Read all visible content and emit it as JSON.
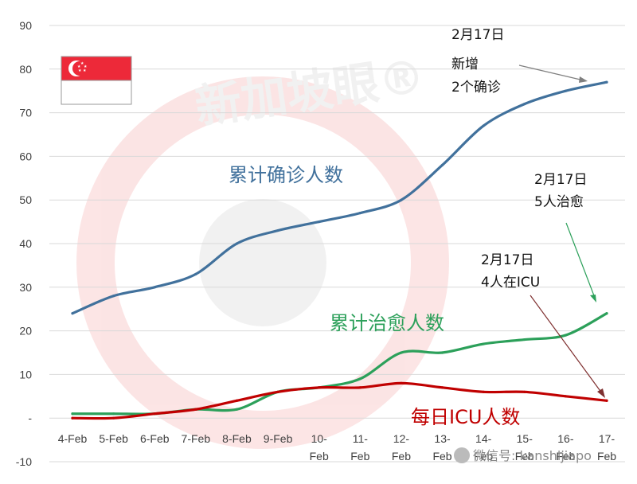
{
  "chart_data": {
    "type": "line",
    "title": "",
    "xlabel": "",
    "ylabel": "",
    "ylim": [
      -10,
      90
    ],
    "yticks": [
      -10,
      0,
      10,
      20,
      30,
      40,
      50,
      60,
      70,
      80,
      90
    ],
    "ytick_labels": [
      "-10",
      "-",
      "10",
      "20",
      "30",
      "40",
      "50",
      "60",
      "70",
      "80",
      "90"
    ],
    "grid": true,
    "categories": [
      "4-Feb",
      "5-Feb",
      "6-Feb",
      "7-Feb",
      "8-Feb",
      "9-Feb",
      "10-Feb",
      "11-Feb",
      "12-Feb",
      "13-Feb",
      "14-Feb",
      "15-Feb",
      "16-Feb",
      "17-Feb"
    ],
    "category_lines": [
      [
        "4-Feb"
      ],
      [
        "5-Feb"
      ],
      [
        "6-Feb"
      ],
      [
        "7-Feb"
      ],
      [
        "8-Feb"
      ],
      [
        "9-Feb"
      ],
      [
        "10-",
        "Feb"
      ],
      [
        "11-",
        "Feb"
      ],
      [
        "12-",
        "Feb"
      ],
      [
        "13-",
        "Feb"
      ],
      [
        "14-",
        "Feb"
      ],
      [
        "15-",
        "Feb"
      ],
      [
        "16-",
        "Feb"
      ],
      [
        "17-",
        "Feb"
      ]
    ],
    "series": [
      {
        "name": "累计确诊人数",
        "color": "#41719c",
        "values": [
          24,
          28,
          30,
          33,
          40,
          43,
          45,
          47,
          50,
          58,
          67,
          72,
          75,
          77
        ]
      },
      {
        "name": "累计治愈人数",
        "color": "#2ca05a",
        "values": [
          1,
          1,
          1,
          2,
          2,
          6,
          7,
          9,
          15,
          15,
          17,
          18,
          19,
          24
        ]
      },
      {
        "name": "每日ICU人数",
        "color": "#c00000",
        "values": [
          0,
          0,
          1,
          2,
          4,
          6,
          7,
          7,
          8,
          7,
          6,
          6,
          5,
          4
        ]
      }
    ],
    "annotations": [
      {
        "lines": [
          "2月17日",
          "新增",
          "2个确诊"
        ],
        "target_series": 0
      },
      {
        "lines": [
          "2月17日",
          "5人治愈"
        ],
        "target_series": 1
      },
      {
        "lines": [
          "2月17日",
          "4人在ICU"
        ],
        "target_series": 2
      }
    ]
  },
  "flag": {
    "country": "Singapore",
    "colors": {
      "red": "#ed2939",
      "white": "#ffffff"
    }
  },
  "watermark": {
    "text": "新加坡眼®"
  },
  "footer": {
    "text": "微信号: kanshijiapo"
  }
}
